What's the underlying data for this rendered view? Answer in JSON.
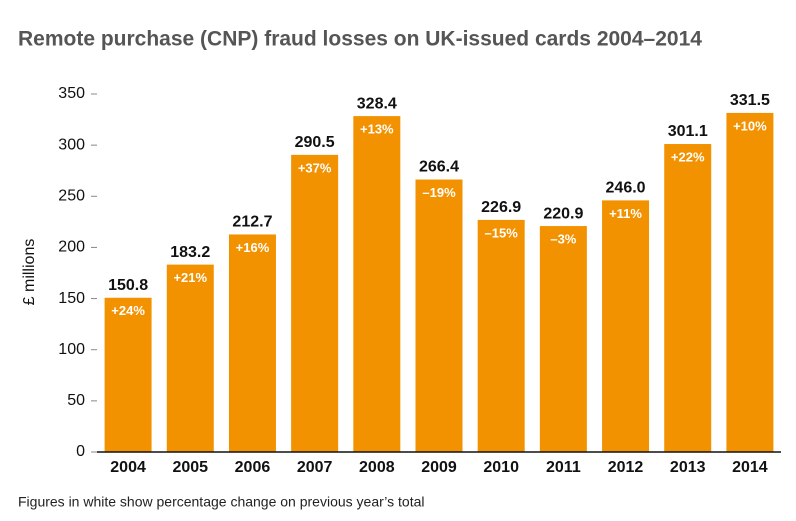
{
  "chart_data": {
    "type": "bar",
    "title": "Remote purchase (CNP) fraud losses on UK-issued cards 2004–2014",
    "y_label": "£ millions",
    "footnote": "Figures in white show percentage change on previous year’s total",
    "categories": [
      "2004",
      "2005",
      "2006",
      "2007",
      "2008",
      "2009",
      "2010",
      "2011",
      "2012",
      "2013",
      "2014"
    ],
    "values": [
      150.8,
      183.2,
      212.7,
      290.5,
      328.4,
      266.4,
      226.9,
      220.9,
      246.0,
      301.1,
      331.5
    ],
    "value_labels": [
      "150.8",
      "183.2",
      "212.7",
      "290.5",
      "328.4",
      "266.4",
      "226.9",
      "220.9",
      "246.0",
      "301.1",
      "331.5"
    ],
    "change_labels": [
      "+24%",
      "+21%",
      "+16%",
      "+37%",
      "+13%",
      "–19%",
      "–15%",
      "–3%",
      "+11%",
      "+22%",
      "+10%"
    ],
    "color": "#f39200",
    "ylim": [
      0,
      350
    ],
    "yticks": [
      0,
      50,
      100,
      150,
      200,
      250,
      300,
      350
    ],
    "grid": false
  }
}
